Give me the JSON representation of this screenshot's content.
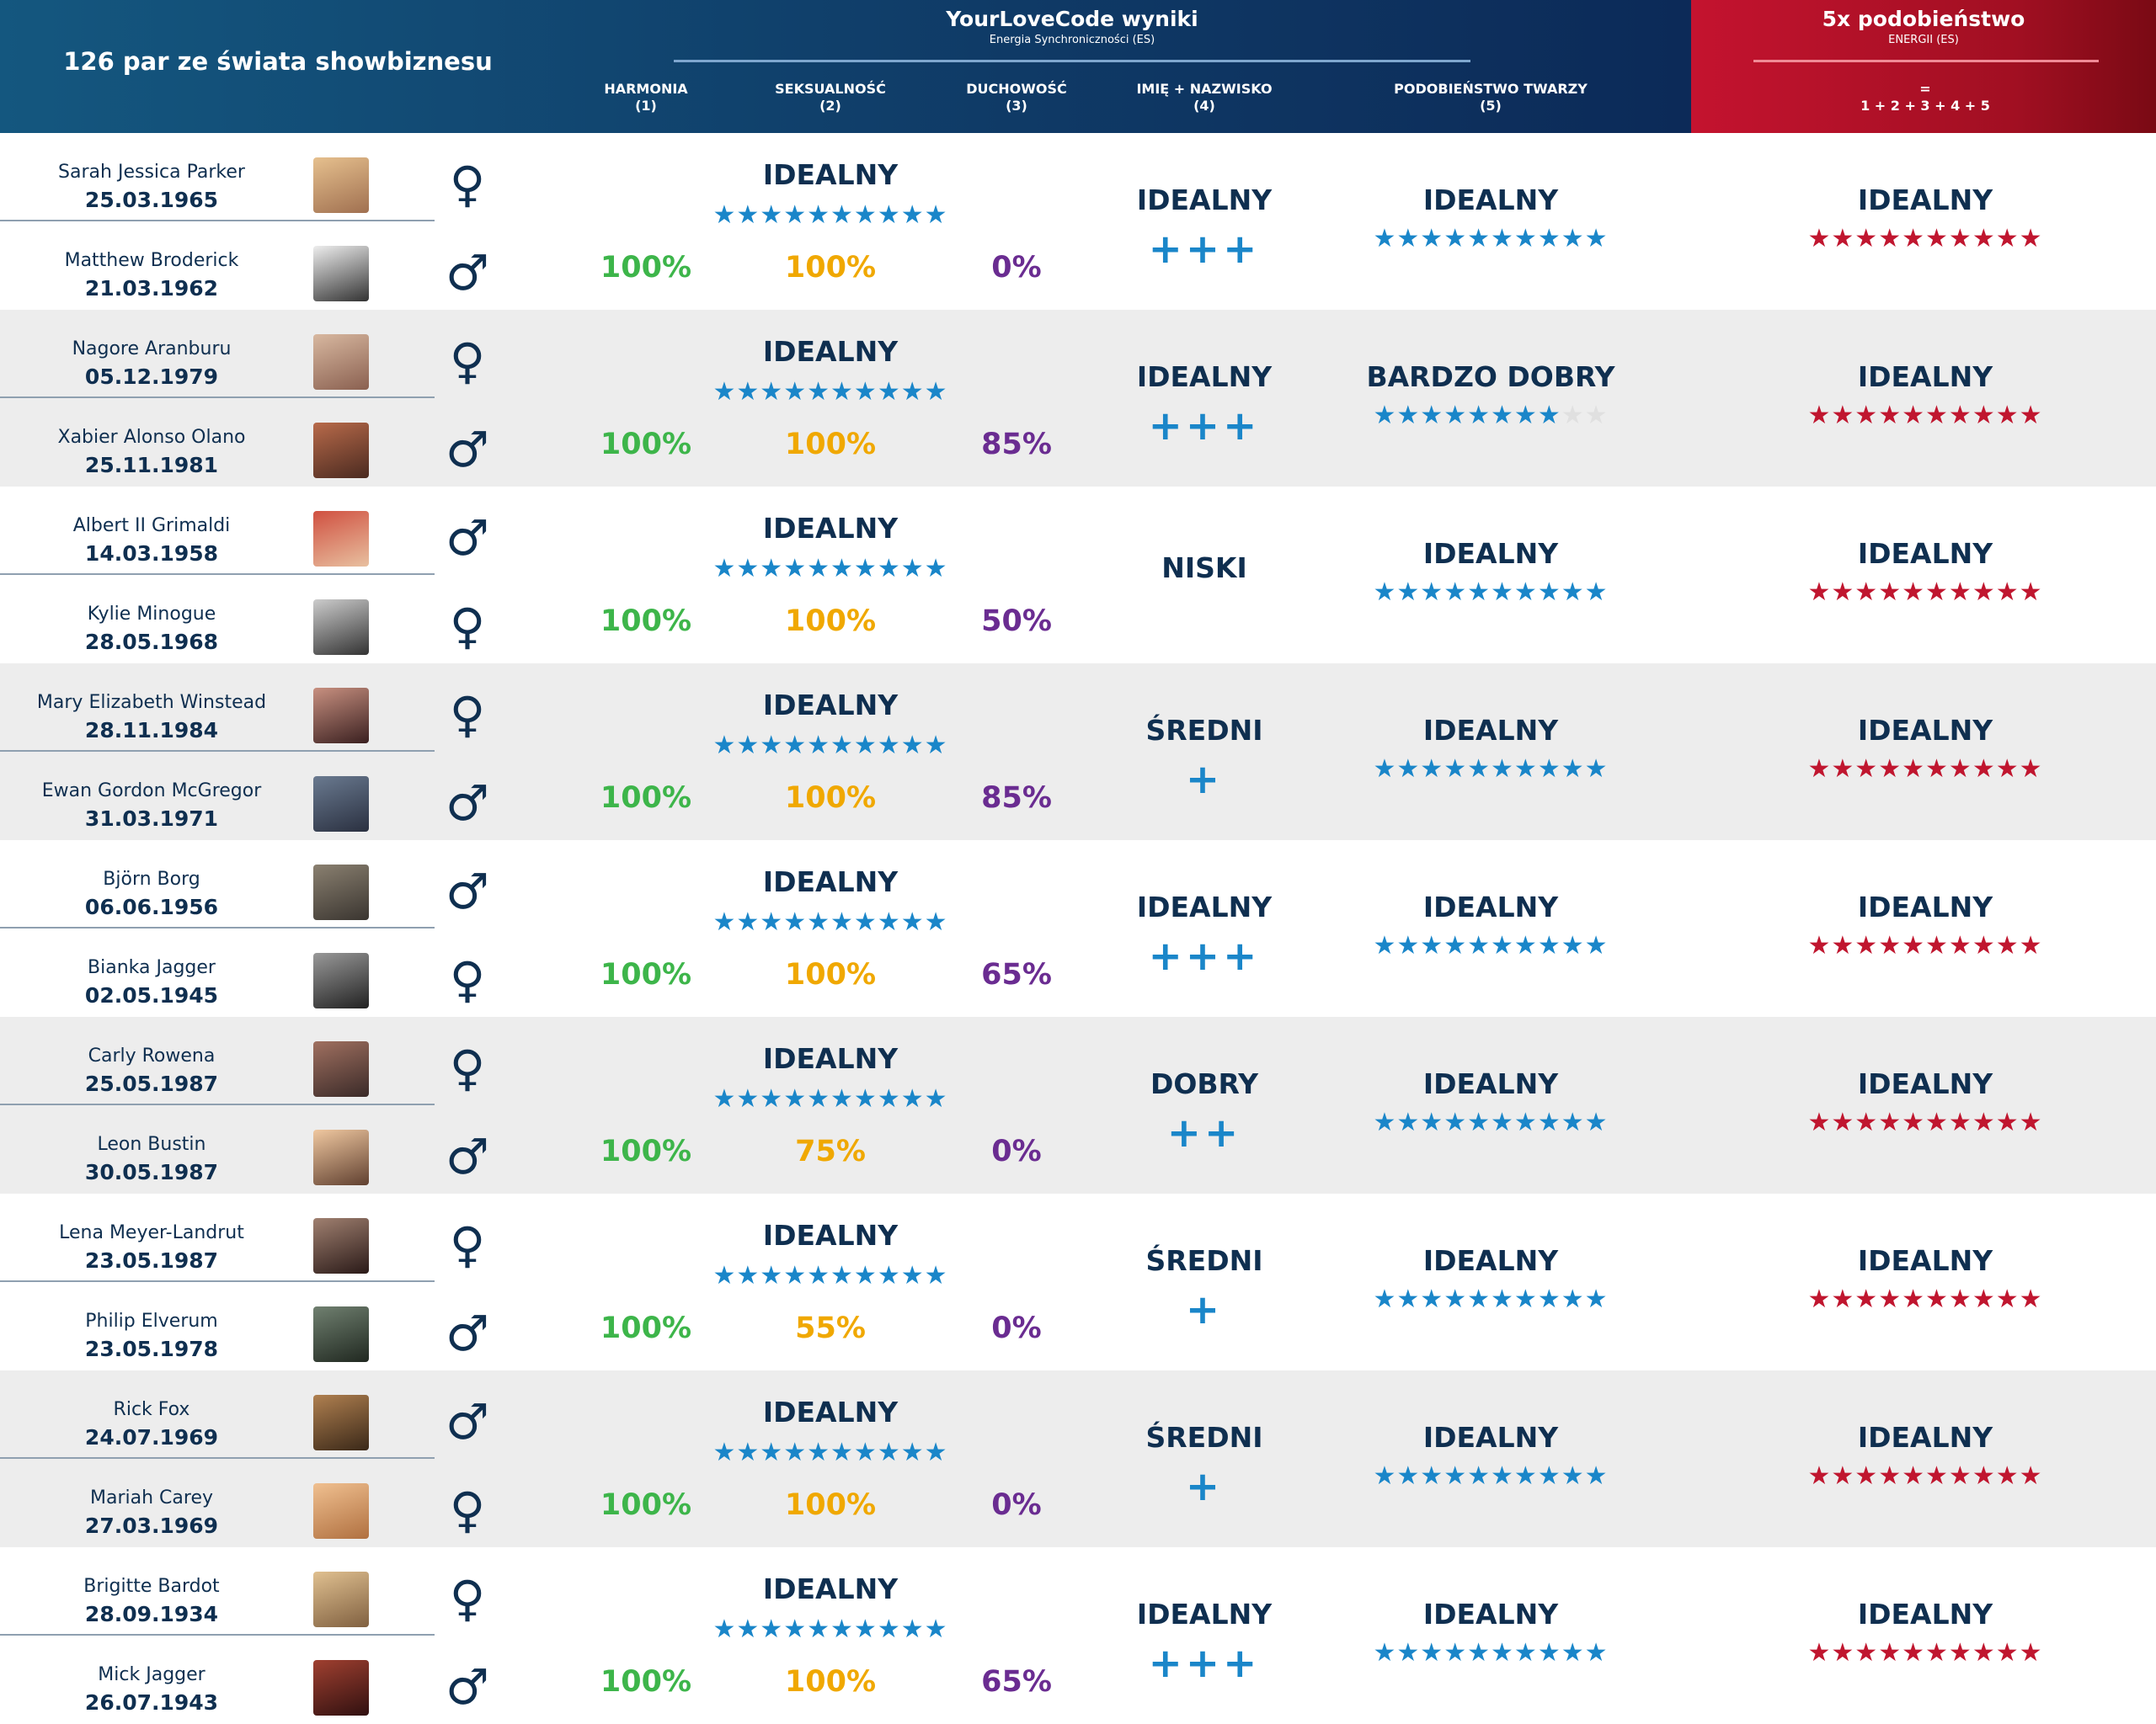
{
  "header": {
    "title": "126 par ze świata showbiznesu",
    "main_title": "YourLoveCode wyniki",
    "main_subtitle": "Energia Synchroniczności (ES)",
    "columns": [
      {
        "label": "HARMONIA",
        "num": "(1)"
      },
      {
        "label": "SEKSUALNOŚĆ",
        "num": "(2)"
      },
      {
        "label": "DUCHOWOŚĆ",
        "num": "(3)"
      },
      {
        "label": "IMIĘ + NAZWISKO",
        "num": "(4)"
      },
      {
        "label": "PODOBIEŃSTWO TWARZY",
        "num": "(5)"
      }
    ],
    "right_title": "5x podobieństwo",
    "right_subtitle": "ENERGII (ES)",
    "right_eq": "=",
    "right_formula": "1 + 2 + 3 + 4 + 5"
  },
  "colors": {
    "harmonia": "#3db54a",
    "seks": "#f0a800",
    "duch": "#6a2c91",
    "blue_star": "#1a86c9",
    "red_star": "#c0162f",
    "empty_star": "#e0e0e0"
  },
  "pairs": [
    {
      "p1": {
        "name": "Sarah Jessica Parker",
        "date": "25.03.1965",
        "gender": "♀"
      },
      "p2": {
        "name": "Matthew Broderick",
        "date": "21.03.1962",
        "gender": "♂"
      },
      "harmonia": "100%",
      "seks": "100%",
      "duch": "0%",
      "seks_label": "IDEALNY",
      "seks_stars": 10,
      "imie_label": "IDEALNY",
      "imie_plus": "+++",
      "twarz_label": "IDEALNY",
      "twarz_stars": 10,
      "total_label": "IDEALNY",
      "total_stars": 10
    },
    {
      "p1": {
        "name": "Nagore Aranburu",
        "date": "05.12.1979",
        "gender": "♀"
      },
      "p2": {
        "name": "Xabier Alonso Olano",
        "date": "25.11.1981",
        "gender": "♂"
      },
      "harmonia": "100%",
      "seks": "100%",
      "duch": "85%",
      "seks_label": "IDEALNY",
      "seks_stars": 10,
      "imie_label": "IDEALNY",
      "imie_plus": "+++",
      "twarz_label": "BARDZO DOBRY",
      "twarz_stars": 8,
      "total_label": "IDEALNY",
      "total_stars": 10
    },
    {
      "p1": {
        "name": "Albert II Grimaldi",
        "date": "14.03.1958",
        "gender": "♂"
      },
      "p2": {
        "name": "Kylie Minogue",
        "date": "28.05.1968",
        "gender": "♀"
      },
      "harmonia": "100%",
      "seks": "100%",
      "duch": "50%",
      "seks_label": "IDEALNY",
      "seks_stars": 10,
      "imie_label": "NISKI",
      "imie_plus": "",
      "twarz_label": "IDEALNY",
      "twarz_stars": 10,
      "total_label": "IDEALNY",
      "total_stars": 10
    },
    {
      "p1": {
        "name": "Mary Elizabeth Winstead",
        "date": "28.11.1984",
        "gender": "♀"
      },
      "p2": {
        "name": "Ewan Gordon McGregor",
        "date": "31.03.1971",
        "gender": "♂"
      },
      "harmonia": "100%",
      "seks": "100%",
      "duch": "85%",
      "seks_label": "IDEALNY",
      "seks_stars": 10,
      "imie_label": "ŚREDNI",
      "imie_plus": "+",
      "twarz_label": "IDEALNY",
      "twarz_stars": 10,
      "total_label": "IDEALNY",
      "total_stars": 10
    },
    {
      "p1": {
        "name": "Björn Borg",
        "date": "06.06.1956",
        "gender": "♂"
      },
      "p2": {
        "name": "Bianka Jagger",
        "date": "02.05.1945",
        "gender": "♀"
      },
      "harmonia": "100%",
      "seks": "100%",
      "duch": "65%",
      "seks_label": "IDEALNY",
      "seks_stars": 10,
      "imie_label": "IDEALNY",
      "imie_plus": "+++",
      "twarz_label": "IDEALNY",
      "twarz_stars": 10,
      "total_label": "IDEALNY",
      "total_stars": 10
    },
    {
      "p1": {
        "name": "Carly Rowena",
        "date": "25.05.1987",
        "gender": "♀"
      },
      "p2": {
        "name": "Leon Bustin",
        "date": "30.05.1987",
        "gender": "♂"
      },
      "harmonia": "100%",
      "seks": "75%",
      "duch": "0%",
      "seks_label": "IDEALNY",
      "seks_stars": 10,
      "imie_label": "DOBRY",
      "imie_plus": "++",
      "twarz_label": "IDEALNY",
      "twarz_stars": 10,
      "total_label": "IDEALNY",
      "total_stars": 10
    },
    {
      "p1": {
        "name": "Lena Meyer-Landrut",
        "date": "23.05.1987",
        "gender": "♀"
      },
      "p2": {
        "name": "Philip Elverum",
        "date": "23.05.1978",
        "gender": "♂"
      },
      "harmonia": "100%",
      "seks": "55%",
      "duch": "0%",
      "seks_label": "IDEALNY",
      "seks_stars": 10,
      "imie_label": "ŚREDNI",
      "imie_plus": "+",
      "twarz_label": "IDEALNY",
      "twarz_stars": 10,
      "total_label": "IDEALNY",
      "total_stars": 10
    },
    {
      "p1": {
        "name": "Rick Fox",
        "date": "24.07.1969",
        "gender": "♂"
      },
      "p2": {
        "name": "Mariah Carey",
        "date": "27.03.1969",
        "gender": "♀"
      },
      "harmonia": "100%",
      "seks": "100%",
      "duch": "0%",
      "seks_label": "IDEALNY",
      "seks_stars": 10,
      "imie_label": "ŚREDNI",
      "imie_plus": "+",
      "twarz_label": "IDEALNY",
      "twarz_stars": 10,
      "total_label": "IDEALNY",
      "total_stars": 10
    },
    {
      "p1": {
        "name": "Brigitte Bardot",
        "date": "28.09.1934",
        "gender": "♀"
      },
      "p2": {
        "name": "Mick Jagger",
        "date": "26.07.1943",
        "gender": "♂"
      },
      "harmonia": "100%",
      "seks": "100%",
      "duch": "65%",
      "seks_label": "IDEALNY",
      "seks_stars": 10,
      "imie_label": "IDEALNY",
      "imie_plus": "+++",
      "twarz_label": "IDEALNY",
      "twarz_stars": 10,
      "total_label": "IDEALNY",
      "total_stars": 10
    }
  ]
}
